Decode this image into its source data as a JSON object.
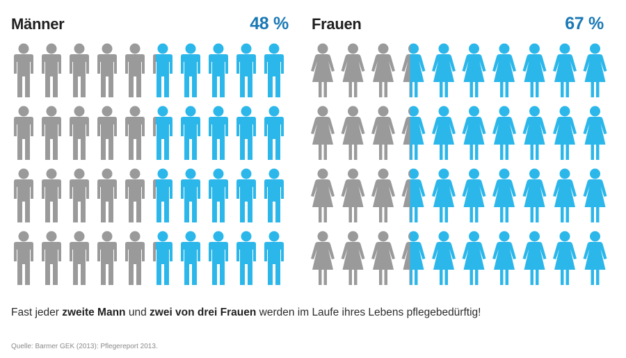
{
  "colors": {
    "highlight": "#2cb7ea",
    "neutral": "#9a9a9a",
    "accent_text": "#1a78b5"
  },
  "chart_data": [
    {
      "type": "pictogram",
      "title": "Männer",
      "value_label": "48 %",
      "value_percent": 48,
      "rows": 4,
      "cols": 10,
      "icon": "man-icon"
    },
    {
      "type": "pictogram",
      "title": "Frauen",
      "value_label": "67 %",
      "value_percent": 67,
      "rows": 4,
      "cols": 10,
      "icon": "woman-icon"
    }
  ],
  "caption": {
    "part1": "Fast jeder ",
    "bold1": "zweite Mann",
    "part2": " und ",
    "bold2": "zwei von drei Frauen",
    "part3": " werden im Laufe ihres Lebens pflegebedürftig!"
  },
  "source": "Quelle: Barmer GEK (2013): Pflegereport 2013."
}
